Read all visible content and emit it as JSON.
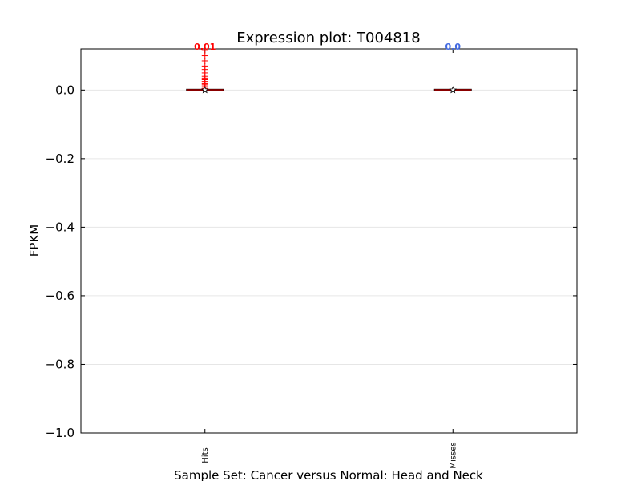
{
  "chart_data": {
    "type": "box",
    "title": "Expression plot: T004818",
    "xlabel": "Sample Set: Cancer versus Normal: Head and Neck",
    "ylabel": "FPKM",
    "ylim": [
      -1.0,
      0.12
    ],
    "yticks": [
      0.0,
      -0.2,
      -0.4,
      -0.6,
      -0.8,
      -1.0
    ],
    "ytick_labels": [
      "0.0",
      "−0.2",
      "−0.4",
      "−0.6",
      "−0.8",
      "−1.0"
    ],
    "grid": true,
    "categories": [
      "Hits",
      "Misses"
    ],
    "series": [
      {
        "category": "Hits",
        "mean_label": "0.01",
        "label_color": "#ff0000",
        "median": 0.0,
        "q1": 0.0,
        "q3": 0.0,
        "whisker_low": 0.0,
        "whisker_high": 0.0,
        "mean": 0.0,
        "outliers": [
          0.005,
          0.01,
          0.015,
          0.018,
          0.02,
          0.025,
          0.03,
          0.035,
          0.04,
          0.05,
          0.06,
          0.07,
          0.085,
          0.1,
          0.115
        ]
      },
      {
        "category": "Misses",
        "mean_label": "0.0",
        "label_color": "#4169e1",
        "median": 0.0,
        "q1": 0.0,
        "q3": 0.0,
        "whisker_low": 0.0,
        "whisker_high": 0.0,
        "mean": 0.0,
        "outliers": []
      }
    ]
  }
}
